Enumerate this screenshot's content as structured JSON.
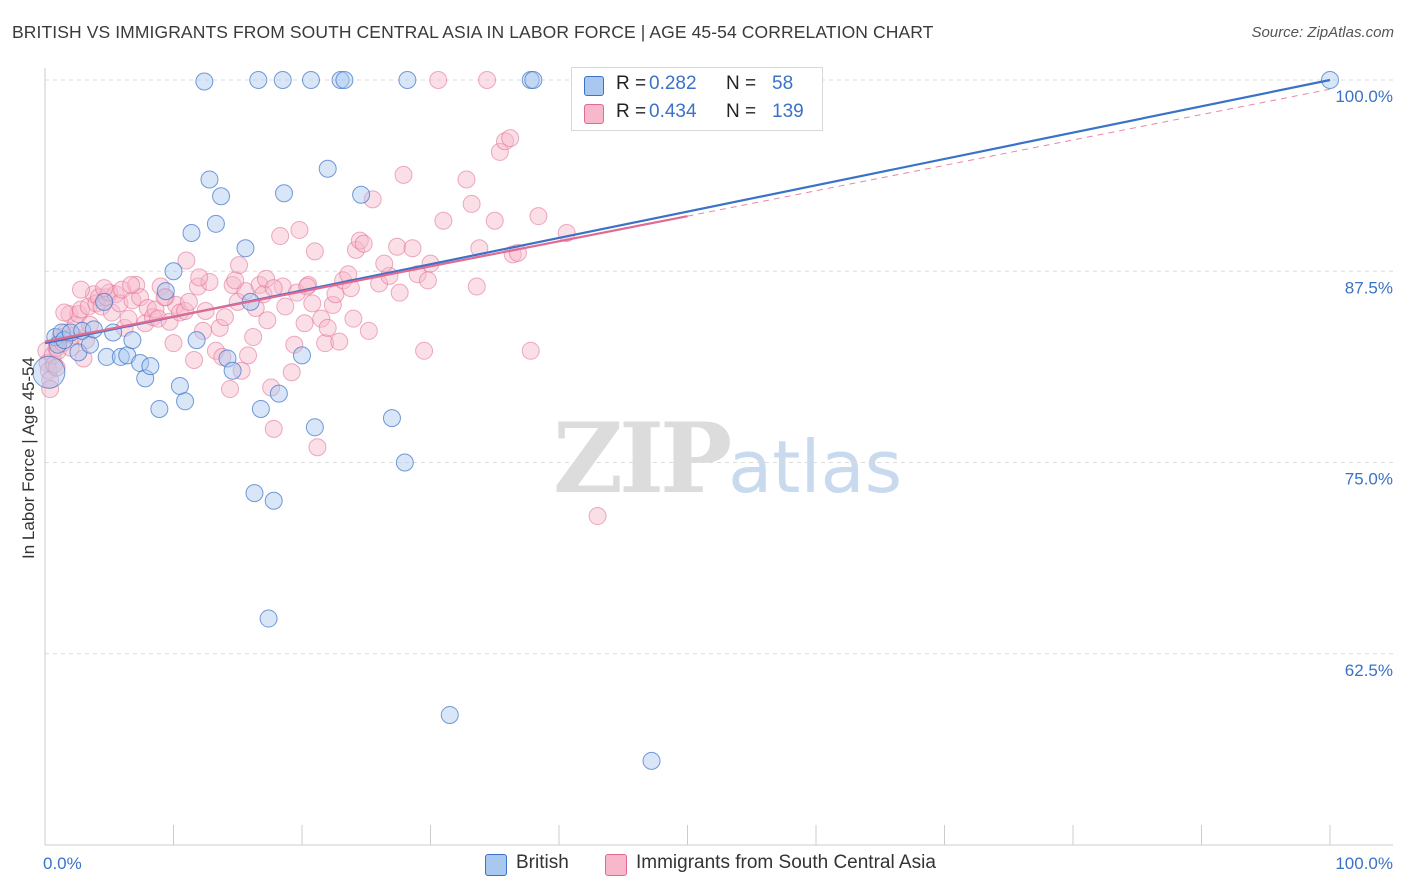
{
  "title": "BRITISH VS IMMIGRANTS FROM SOUTH CENTRAL ASIA IN LABOR FORCE | AGE 45-54 CORRELATION CHART",
  "source": "Source: ZipAtlas.com",
  "watermark": {
    "zip": "ZIP",
    "atlas": "atlas"
  },
  "legend_stats": [
    {
      "r_label": "R =",
      "r_value": "0.282",
      "n_label": "N =",
      "n_value": "58",
      "color": "#a8c8f0"
    },
    {
      "r_label": "R =",
      "r_value": "0.434",
      "n_label": "N =",
      "n_value": "139",
      "color": "#f6b8ca"
    }
  ],
  "legend_bottom": [
    {
      "label": "British",
      "color": "#a8c8f0"
    },
    {
      "label": "Immigrants from South Central Asia",
      "color": "#f6b8ca"
    }
  ],
  "chart_data": {
    "type": "scatter",
    "title": "BRITISH VS IMMIGRANTS FROM SOUTH CENTRAL ASIA IN LABOR FORCE | AGE 45-54 CORRELATION CHART",
    "xlabel": "",
    "ylabel": "In Labor Force | Age 45-54",
    "xlim": [
      0,
      100
    ],
    "ylim": [
      50,
      100
    ],
    "x_tick_labels": [
      "0.0%",
      "100.0%"
    ],
    "y_ticks": [
      {
        "value": 62.5,
        "label": "62.5%"
      },
      {
        "value": 75.0,
        "label": "75.0%"
      },
      {
        "value": 87.5,
        "label": "87.5%"
      },
      {
        "value": 100.0,
        "label": "100.0%"
      }
    ],
    "grid": "horizontal dashed",
    "colors": {
      "british": "#3a72c8",
      "british_fill": "#a8c8f0",
      "immigrants": "#e06a92",
      "immigrants_fill": "#f6b8ca",
      "tick_text": "#3a72c8"
    },
    "series": [
      {
        "name": "British",
        "points": [
          [
            0.3,
            80.9
          ],
          [
            0.8,
            83.2
          ],
          [
            1.0,
            82.7
          ],
          [
            1.3,
            83.5
          ],
          [
            1.5,
            83.0
          ],
          [
            2.0,
            83.5
          ],
          [
            2.6,
            82.2
          ],
          [
            2.9,
            83.6
          ],
          [
            3.5,
            82.7
          ],
          [
            3.8,
            83.7
          ],
          [
            4.6,
            85.5
          ],
          [
            4.8,
            81.9
          ],
          [
            5.3,
            83.5
          ],
          [
            5.9,
            81.9
          ],
          [
            6.4,
            82.0
          ],
          [
            6.8,
            83.0
          ],
          [
            7.4,
            81.5
          ],
          [
            7.8,
            80.5
          ],
          [
            8.2,
            81.3
          ],
          [
            8.9,
            78.5
          ],
          [
            9.4,
            86.2
          ],
          [
            10.0,
            87.5
          ],
          [
            10.5,
            80.0
          ],
          [
            10.9,
            79.0
          ],
          [
            11.4,
            90.0
          ],
          [
            11.8,
            83.0
          ],
          [
            12.4,
            99.9
          ],
          [
            12.8,
            93.5
          ],
          [
            13.3,
            90.6
          ],
          [
            13.7,
            92.4
          ],
          [
            14.2,
            81.8
          ],
          [
            14.6,
            81.0
          ],
          [
            15.6,
            89.0
          ],
          [
            16.0,
            85.5
          ],
          [
            16.3,
            73.0
          ],
          [
            16.8,
            78.5
          ],
          [
            17.4,
            64.8
          ],
          [
            17.8,
            72.5
          ],
          [
            18.2,
            79.5
          ],
          [
            18.6,
            92.6
          ],
          [
            20.0,
            82.0
          ],
          [
            21.0,
            77.3
          ],
          [
            22.0,
            94.2
          ],
          [
            23.0,
            100.0
          ],
          [
            23.3,
            100.0
          ],
          [
            24.6,
            92.5
          ],
          [
            27.0,
            77.9
          ],
          [
            28.0,
            75.0
          ],
          [
            28.2,
            100.0
          ],
          [
            31.5,
            58.5
          ],
          [
            37.8,
            100.0
          ],
          [
            38.0,
            100.0
          ],
          [
            47.2,
            55.5
          ],
          [
            50.5,
            100.0
          ],
          [
            100.0,
            100.0
          ],
          [
            20.7,
            100.0
          ],
          [
            18.5,
            100.0
          ],
          [
            16.6,
            100.0
          ]
        ]
      },
      {
        "name": "Immigrants from South Central Asia",
        "points": [
          [
            0.1,
            82.3
          ],
          [
            0.2,
            81.5
          ],
          [
            0.3,
            81.0
          ],
          [
            0.4,
            80.4
          ],
          [
            0.4,
            79.8
          ],
          [
            0.6,
            82.0
          ],
          [
            0.7,
            81.4
          ],
          [
            0.9,
            82.5
          ],
          [
            1.0,
            82.3
          ],
          [
            1.2,
            83.2
          ],
          [
            1.4,
            82.8
          ],
          [
            1.6,
            83.5
          ],
          [
            1.9,
            84.7
          ],
          [
            2.0,
            82.5
          ],
          [
            2.2,
            83.3
          ],
          [
            2.4,
            84.0
          ],
          [
            2.6,
            84.7
          ],
          [
            2.8,
            85.0
          ],
          [
            3.0,
            81.8
          ],
          [
            3.2,
            83.0
          ],
          [
            3.4,
            85.2
          ],
          [
            3.5,
            84.0
          ],
          [
            3.8,
            86.0
          ],
          [
            4.0,
            85.4
          ],
          [
            4.2,
            85.8
          ],
          [
            4.4,
            85.2
          ],
          [
            4.8,
            85.8
          ],
          [
            5.0,
            86.1
          ],
          [
            5.2,
            84.8
          ],
          [
            5.5,
            86.0
          ],
          [
            5.8,
            85.4
          ],
          [
            6.0,
            86.3
          ],
          [
            6.2,
            83.8
          ],
          [
            6.5,
            84.4
          ],
          [
            6.8,
            85.6
          ],
          [
            7.1,
            86.6
          ],
          [
            7.4,
            85.8
          ],
          [
            7.8,
            84.1
          ],
          [
            8.0,
            85.1
          ],
          [
            8.4,
            84.5
          ],
          [
            8.6,
            85.0
          ],
          [
            8.8,
            84.4
          ],
          [
            9.0,
            86.5
          ],
          [
            9.4,
            85.8
          ],
          [
            9.7,
            84.2
          ],
          [
            10.0,
            82.8
          ],
          [
            10.2,
            85.3
          ],
          [
            10.5,
            84.8
          ],
          [
            10.9,
            84.9
          ],
          [
            11.0,
            88.2
          ],
          [
            11.2,
            85.5
          ],
          [
            11.6,
            81.7
          ],
          [
            11.9,
            86.5
          ],
          [
            12.3,
            83.6
          ],
          [
            12.5,
            84.9
          ],
          [
            12.8,
            86.8
          ],
          [
            13.3,
            82.3
          ],
          [
            13.6,
            83.8
          ],
          [
            13.8,
            81.9
          ],
          [
            14.0,
            84.5
          ],
          [
            14.4,
            79.8
          ],
          [
            14.6,
            86.6
          ],
          [
            15.0,
            85.5
          ],
          [
            15.1,
            87.9
          ],
          [
            15.3,
            81.0
          ],
          [
            15.6,
            86.2
          ],
          [
            15.8,
            82.0
          ],
          [
            16.2,
            83.2
          ],
          [
            16.4,
            85.1
          ],
          [
            16.7,
            86.6
          ],
          [
            17.0,
            86.0
          ],
          [
            17.3,
            84.3
          ],
          [
            17.6,
            79.9
          ],
          [
            17.8,
            77.2
          ],
          [
            18.3,
            89.8
          ],
          [
            18.5,
            86.5
          ],
          [
            18.7,
            85.2
          ],
          [
            19.2,
            80.9
          ],
          [
            19.4,
            82.7
          ],
          [
            19.6,
            86.1
          ],
          [
            19.8,
            90.2
          ],
          [
            20.2,
            84.1
          ],
          [
            20.5,
            86.6
          ],
          [
            20.8,
            85.4
          ],
          [
            21.2,
            76.0
          ],
          [
            21.5,
            84.4
          ],
          [
            21.8,
            82.8
          ],
          [
            22.0,
            83.8
          ],
          [
            22.4,
            85.3
          ],
          [
            22.6,
            86.0
          ],
          [
            22.9,
            82.9
          ],
          [
            23.2,
            86.9
          ],
          [
            23.6,
            87.3
          ],
          [
            24.0,
            84.4
          ],
          [
            24.2,
            88.9
          ],
          [
            24.5,
            89.5
          ],
          [
            24.8,
            89.3
          ],
          [
            25.2,
            83.6
          ],
          [
            25.5,
            92.2
          ],
          [
            26.0,
            86.7
          ],
          [
            26.8,
            87.2
          ],
          [
            27.4,
            89.1
          ],
          [
            27.6,
            86.1
          ],
          [
            27.9,
            93.8
          ],
          [
            28.6,
            89.0
          ],
          [
            29.0,
            87.3
          ],
          [
            29.5,
            82.3
          ],
          [
            30.0,
            88.0
          ],
          [
            30.6,
            100.0
          ],
          [
            32.8,
            93.5
          ],
          [
            33.2,
            91.9
          ],
          [
            33.6,
            86.5
          ],
          [
            33.8,
            89.0
          ],
          [
            34.4,
            100.0
          ],
          [
            35.0,
            90.8
          ],
          [
            35.4,
            95.3
          ],
          [
            35.8,
            96.0
          ],
          [
            36.2,
            96.2
          ],
          [
            36.4,
            88.6
          ],
          [
            36.8,
            88.7
          ],
          [
            37.8,
            82.3
          ],
          [
            38.4,
            91.1
          ],
          [
            40.6,
            90.0
          ],
          [
            43.0,
            71.5
          ],
          [
            0.9,
            81.2
          ],
          [
            1.5,
            84.8
          ],
          [
            2.8,
            86.3
          ],
          [
            4.6,
            86.4
          ],
          [
            6.7,
            86.6
          ],
          [
            9.3,
            85.8
          ],
          [
            12.0,
            87.1
          ],
          [
            14.8,
            86.9
          ],
          [
            17.2,
            87.0
          ],
          [
            20.4,
            86.5
          ],
          [
            23.8,
            86.4
          ],
          [
            26.4,
            88.0
          ],
          [
            29.8,
            86.9
          ],
          [
            17.8,
            86.4
          ],
          [
            21.0,
            88.8
          ],
          [
            31.0,
            90.8
          ]
        ]
      }
    ],
    "trend_lines": [
      {
        "series": "British",
        "x": [
          0,
          100
        ],
        "y": [
          82.8,
          100.0
        ],
        "style": "solid"
      },
      {
        "series": "Immigrants from South Central Asia",
        "x": [
          0,
          50
        ],
        "y": [
          82.9,
          91.1
        ],
        "style": "solid"
      },
      {
        "series": "Immigrants from South Central Asia",
        "x": [
          50,
          100
        ],
        "y": [
          91.1,
          99.4
        ],
        "style": "dashed"
      }
    ]
  }
}
